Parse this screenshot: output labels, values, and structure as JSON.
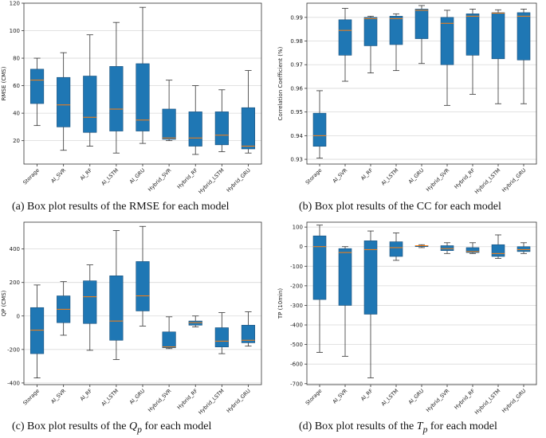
{
  "colors": {
    "box": "#1f77b4",
    "median": "#ff7f0e",
    "whisker": "#333333",
    "grid": "#d9d9d9"
  },
  "captions": {
    "a": "(a) Box plot results of the RMSE for each model",
    "b": "(b) Box plot results of the CC for each model",
    "c_pre": "(c) Box plot results of the ",
    "c_var": "Q",
    "c_sub": "p",
    "c_post": " for each model",
    "d_pre": "(d) Box plot results of the ",
    "d_var": "T",
    "d_sub": "p",
    "d_post": " for each model"
  },
  "chart_data": [
    {
      "id": "a",
      "type": "box",
      "ylabel": "RMSE (CMS)",
      "ylim": [
        3,
        120
      ],
      "yticks": [
        20,
        40,
        60,
        80,
        100,
        120
      ],
      "categories": [
        "Storage",
        "AI_SVR",
        "AI_RF",
        "AI_LSTM",
        "AI_GRU",
        "Hybrid_SVR",
        "Hybrid_RF",
        "Hybrid_LSTM",
        "Hybrid_GRU"
      ],
      "boxes": [
        {
          "min": 31,
          "q1": 47,
          "median": 64,
          "q3": 72,
          "max": 80
        },
        {
          "min": 13,
          "q1": 30,
          "median": 46,
          "q3": 66,
          "max": 84
        },
        {
          "min": 16,
          "q1": 26,
          "median": 37,
          "q3": 67,
          "max": 97
        },
        {
          "min": 11,
          "q1": 27,
          "median": 43,
          "q3": 74,
          "max": 106
        },
        {
          "min": 18,
          "q1": 27,
          "median": 35,
          "q3": 76,
          "max": 117
        },
        {
          "min": 20,
          "q1": 21,
          "median": 22,
          "q3": 43,
          "max": 64
        },
        {
          "min": 10,
          "q1": 16,
          "median": 22,
          "q3": 41,
          "max": 60
        },
        {
          "min": 12,
          "q1": 17,
          "median": 24,
          "q3": 41,
          "max": 57
        },
        {
          "min": 11,
          "q1": 14,
          "median": 16,
          "q3": 44,
          "max": 71
        }
      ]
    },
    {
      "id": "b",
      "type": "box",
      "ylabel": "Correlation Coefficient (%)",
      "ylim": [
        0.928,
        0.996
      ],
      "yticks": [
        0.93,
        0.94,
        0.95,
        0.96,
        0.97,
        0.98,
        0.99
      ],
      "categories": [
        "Storage",
        "AI_SVR",
        "AI_RF",
        "AI_LSTM",
        "AI_GRU",
        "Hybrid_SVR",
        "Hybrid_RF",
        "Hybrid_LSTM",
        "Hybrid_GRU"
      ],
      "boxes": [
        {
          "min": 0.9305,
          "q1": 0.9355,
          "median": 0.94,
          "q3": 0.9495,
          "max": 0.959
        },
        {
          "min": 0.963,
          "q1": 0.974,
          "median": 0.9845,
          "q3": 0.989,
          "max": 0.9938
        },
        {
          "min": 0.9665,
          "q1": 0.978,
          "median": 0.9895,
          "q3": 0.99,
          "max": 0.9905
        },
        {
          "min": 0.9675,
          "q1": 0.9785,
          "median": 0.9895,
          "q3": 0.9905,
          "max": 0.9915
        },
        {
          "min": 0.9705,
          "q1": 0.981,
          "median": 0.993,
          "q3": 0.9935,
          "max": 0.995
        },
        {
          "min": 0.9528,
          "q1": 0.97,
          "median": 0.9875,
          "q3": 0.99,
          "max": 0.993
        },
        {
          "min": 0.9575,
          "q1": 0.974,
          "median": 0.9905,
          "q3": 0.9915,
          "max": 0.9935
        },
        {
          "min": 0.9535,
          "q1": 0.9725,
          "median": 0.9918,
          "q3": 0.992,
          "max": 0.9932
        },
        {
          "min": 0.9535,
          "q1": 0.972,
          "median": 0.9905,
          "q3": 0.992,
          "max": 0.9935
        }
      ]
    },
    {
      "id": "c",
      "type": "box",
      "ylabel": "QP (CMS)",
      "ylim": [
        -410,
        560
      ],
      "yticks": [
        -400,
        -200,
        0,
        200,
        400
      ],
      "categories": [
        "Storage",
        "AI_SVR",
        "AI_RF",
        "AI_LSTM",
        "AI_GRU",
        "Hybrid_SVR",
        "Hybrid_RF",
        "Hybrid_LSTM",
        "Hybrid_GRU"
      ],
      "boxes": [
        {
          "min": -370,
          "q1": -225,
          "median": -85,
          "q3": 50,
          "max": 185
        },
        {
          "min": -115,
          "q1": -40,
          "median": 40,
          "q3": 120,
          "max": 205
        },
        {
          "min": -205,
          "q1": -45,
          "median": 115,
          "q3": 210,
          "max": 305
        },
        {
          "min": -260,
          "q1": -145,
          "median": -30,
          "q3": 240,
          "max": 510
        },
        {
          "min": -60,
          "q1": 30,
          "median": 120,
          "q3": 325,
          "max": 535
        },
        {
          "min": -195,
          "q1": -190,
          "median": -185,
          "q3": -95,
          "max": -5
        },
        {
          "min": -65,
          "q1": -55,
          "median": -40,
          "q3": -30,
          "max": 0
        },
        {
          "min": -225,
          "q1": -185,
          "median": -150,
          "q3": -70,
          "max": 20
        },
        {
          "min": -180,
          "q1": -160,
          "median": -145,
          "q3": -55,
          "max": 25
        }
      ]
    },
    {
      "id": "d",
      "type": "box",
      "ylabel": "TP (10min)",
      "ylim": [
        -705,
        125
      ],
      "yticks": [
        -700,
        -600,
        -500,
        -400,
        -300,
        -200,
        -100,
        0,
        100
      ],
      "categories": [
        "Storage",
        "AI_SVR",
        "AI_RF",
        "AI_LSTM",
        "AI_GRU",
        "Hybrid_SVR",
        "Hybrid_RF",
        "Hybrid_LSTM",
        "Hybrid_GRU"
      ],
      "boxes": [
        {
          "min": -540,
          "q1": -270,
          "median": 0,
          "q3": 55,
          "max": 110
        },
        {
          "min": -560,
          "q1": -300,
          "median": -30,
          "q3": -10,
          "max": 0
        },
        {
          "min": -670,
          "q1": -345,
          "median": -15,
          "q3": 30,
          "max": 80
        },
        {
          "min": -70,
          "q1": -50,
          "median": -5,
          "q3": 25,
          "max": 70
        },
        {
          "min": -5,
          "q1": 0,
          "median": 5,
          "q3": 5,
          "max": 10
        },
        {
          "min": -35,
          "q1": -20,
          "median": -10,
          "q3": 5,
          "max": 20
        },
        {
          "min": -35,
          "q1": -30,
          "median": -25,
          "q3": -5,
          "max": 20
        },
        {
          "min": -60,
          "q1": -50,
          "median": -35,
          "q3": 10,
          "max": 60
        },
        {
          "min": -35,
          "q1": -25,
          "median": -15,
          "q3": 0,
          "max": 20
        }
      ]
    }
  ]
}
